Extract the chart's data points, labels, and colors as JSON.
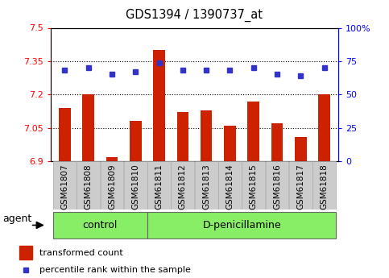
{
  "title": "GDS1394 / 1390737_at",
  "samples": [
    "GSM61807",
    "GSM61808",
    "GSM61809",
    "GSM61810",
    "GSM61811",
    "GSM61812",
    "GSM61813",
    "GSM61814",
    "GSM61815",
    "GSM61816",
    "GSM61817",
    "GSM61818"
  ],
  "bar_values": [
    7.14,
    7.2,
    6.92,
    7.08,
    7.4,
    7.12,
    7.13,
    7.06,
    7.17,
    7.07,
    7.01,
    7.2
  ],
  "percentile_values": [
    68,
    70,
    65,
    67,
    74,
    68,
    68,
    68,
    70,
    65,
    64,
    70
  ],
  "bar_color": "#cc2200",
  "percentile_color": "#3333cc",
  "ylim_left": [
    6.9,
    7.5
  ],
  "ylim_right": [
    0,
    100
  ],
  "yticks_left": [
    6.9,
    7.05,
    7.2,
    7.35,
    7.5
  ],
  "yticks_right": [
    0,
    25,
    50,
    75,
    100
  ],
  "ytick_labels_left": [
    "6.9",
    "7.05",
    "7.2",
    "7.35",
    "7.5"
  ],
  "ytick_labels_right": [
    "0",
    "25",
    "50",
    "75",
    "100%"
  ],
  "hlines": [
    7.05,
    7.2,
    7.35
  ],
  "control_count": 4,
  "control_label": "control",
  "treatment_label": "D-penicillamine",
  "agent_label": "agent",
  "group_bg_color": "#88ee66",
  "sample_bg_color": "#cccccc",
  "bar_width": 0.5,
  "legend_bar_label": "transformed count",
  "legend_pct_label": "percentile rank within the sample"
}
